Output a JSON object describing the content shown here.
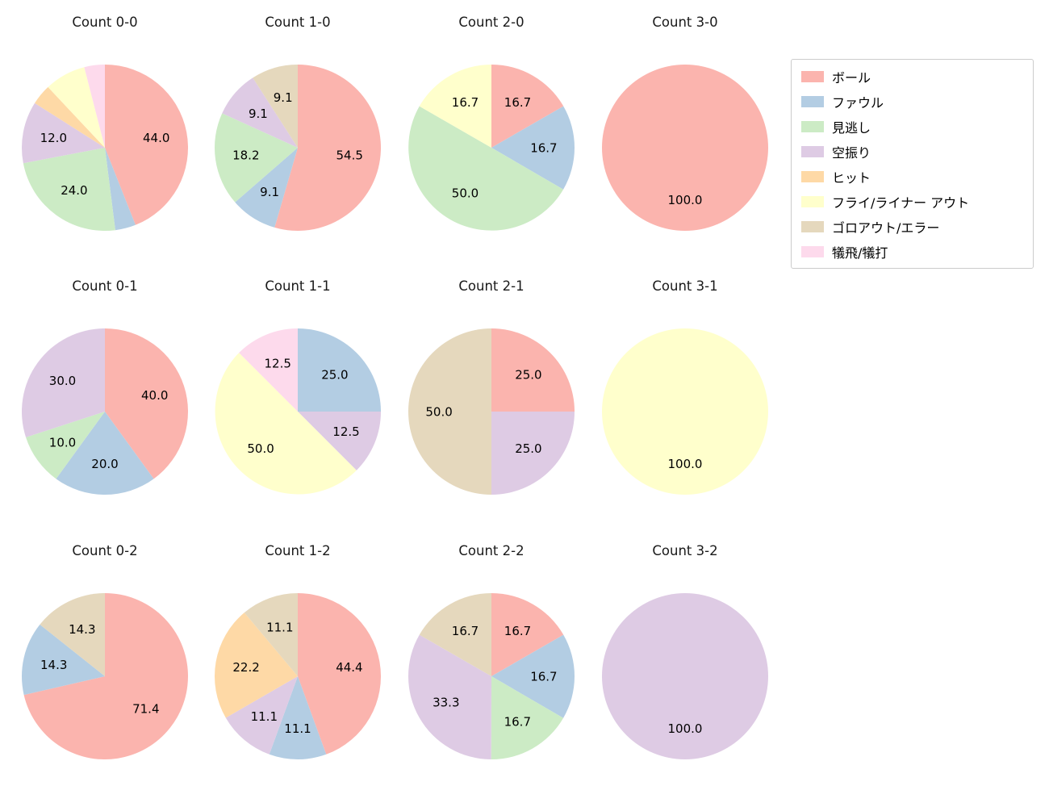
{
  "legend": {
    "items": [
      {
        "label": "ボール",
        "color": "#fbb4ae"
      },
      {
        "label": "ファウル",
        "color": "#b3cde3"
      },
      {
        "label": "見逃し",
        "color": "#ccebc5"
      },
      {
        "label": "空振り",
        "color": "#decbe4"
      },
      {
        "label": "ヒット",
        "color": "#fed9a6"
      },
      {
        "label": "フライ/ライナー アウト",
        "color": "#ffffcc"
      },
      {
        "label": "ゴロアウト/エラー",
        "color": "#e5d8bd"
      },
      {
        "label": "犠飛/犠打",
        "color": "#fddaec"
      }
    ]
  },
  "chart_data": [
    {
      "type": "pie",
      "title": "Count 0-0",
      "start_angle": "top",
      "direction": "clockwise",
      "slices": [
        {
          "category": "ボール",
          "value": 44.0,
          "label": "44.0"
        },
        {
          "category": "ファウル",
          "value": 4.0,
          "label": ""
        },
        {
          "category": "見逃し",
          "value": 24.0,
          "label": "24.0"
        },
        {
          "category": "空振り",
          "value": 12.0,
          "label": "12.0"
        },
        {
          "category": "ヒット",
          "value": 4.0,
          "label": ""
        },
        {
          "category": "フライ/ライナー アウト",
          "value": 8.0,
          "label": ""
        },
        {
          "category": "犠飛/犠打",
          "value": 4.0,
          "label": ""
        }
      ]
    },
    {
      "type": "pie",
      "title": "Count 1-0",
      "start_angle": "top",
      "direction": "clockwise",
      "slices": [
        {
          "category": "ボール",
          "value": 54.5,
          "label": "54.5"
        },
        {
          "category": "ファウル",
          "value": 9.1,
          "label": "9.1"
        },
        {
          "category": "見逃し",
          "value": 18.2,
          "label": "18.2"
        },
        {
          "category": "空振り",
          "value": 9.1,
          "label": "9.1"
        },
        {
          "category": "ゴロアウト/エラー",
          "value": 9.1,
          "label": "9.1"
        }
      ]
    },
    {
      "type": "pie",
      "title": "Count 2-0",
      "start_angle": "top",
      "direction": "clockwise",
      "slices": [
        {
          "category": "ボール",
          "value": 16.7,
          "label": "16.7"
        },
        {
          "category": "ファウル",
          "value": 16.7,
          "label": "16.7"
        },
        {
          "category": "見逃し",
          "value": 50.0,
          "label": "50.0"
        },
        {
          "category": "フライ/ライナー アウト",
          "value": 16.7,
          "label": "16.7"
        }
      ]
    },
    {
      "type": "pie",
      "title": "Count 3-0",
      "start_angle": "top",
      "direction": "clockwise",
      "slices": [
        {
          "category": "ボール",
          "value": 100.0,
          "label": "100.0"
        }
      ]
    },
    {
      "type": "pie",
      "title": "Count 0-1",
      "start_angle": "top",
      "direction": "clockwise",
      "slices": [
        {
          "category": "ボール",
          "value": 40.0,
          "label": "40.0"
        },
        {
          "category": "ファウル",
          "value": 20.0,
          "label": "20.0"
        },
        {
          "category": "見逃し",
          "value": 10.0,
          "label": "10.0"
        },
        {
          "category": "空振り",
          "value": 30.0,
          "label": "30.0"
        }
      ]
    },
    {
      "type": "pie",
      "title": "Count 1-1",
      "start_angle": "top",
      "direction": "clockwise",
      "slices": [
        {
          "category": "ファウル",
          "value": 25.0,
          "label": "25.0"
        },
        {
          "category": "空振り",
          "value": 12.5,
          "label": "12.5"
        },
        {
          "category": "フライ/ライナー アウト",
          "value": 50.0,
          "label": "50.0"
        },
        {
          "category": "犠飛/犠打",
          "value": 12.5,
          "label": "12.5"
        }
      ]
    },
    {
      "type": "pie",
      "title": "Count 2-1",
      "start_angle": "top",
      "direction": "clockwise",
      "slices": [
        {
          "category": "ボール",
          "value": 25.0,
          "label": "25.0"
        },
        {
          "category": "空振り",
          "value": 25.0,
          "label": "25.0"
        },
        {
          "category": "ゴロアウト/エラー",
          "value": 50.0,
          "label": "50.0"
        }
      ]
    },
    {
      "type": "pie",
      "title": "Count 3-1",
      "start_angle": "top",
      "direction": "clockwise",
      "slices": [
        {
          "category": "フライ/ライナー アウト",
          "value": 100.0,
          "label": "100.0"
        }
      ]
    },
    {
      "type": "pie",
      "title": "Count 0-2",
      "start_angle": "top",
      "direction": "clockwise",
      "slices": [
        {
          "category": "ボール",
          "value": 71.4,
          "label": "71.4"
        },
        {
          "category": "ファウル",
          "value": 14.3,
          "label": "14.3"
        },
        {
          "category": "ゴロアウト/エラー",
          "value": 14.3,
          "label": "14.3"
        }
      ]
    },
    {
      "type": "pie",
      "title": "Count 1-2",
      "start_angle": "top",
      "direction": "clockwise",
      "slices": [
        {
          "category": "ボール",
          "value": 44.4,
          "label": "44.4"
        },
        {
          "category": "ファウル",
          "value": 11.1,
          "label": "11.1"
        },
        {
          "category": "空振り",
          "value": 11.1,
          "label": "11.1"
        },
        {
          "category": "ヒット",
          "value": 22.2,
          "label": "22.2"
        },
        {
          "category": "ゴロアウト/エラー",
          "value": 11.1,
          "label": "11.1"
        }
      ]
    },
    {
      "type": "pie",
      "title": "Count 2-2",
      "start_angle": "top",
      "direction": "clockwise",
      "slices": [
        {
          "category": "ボール",
          "value": 16.7,
          "label": "16.7"
        },
        {
          "category": "ファウル",
          "value": 16.7,
          "label": "16.7"
        },
        {
          "category": "見逃し",
          "value": 16.7,
          "label": "16.7"
        },
        {
          "category": "空振り",
          "value": 33.3,
          "label": "33.3"
        },
        {
          "category": "ゴロアウト/エラー",
          "value": 16.7,
          "label": "16.7"
        }
      ]
    },
    {
      "type": "pie",
      "title": "Count 3-2",
      "start_angle": "top",
      "direction": "clockwise",
      "slices": [
        {
          "category": "空振り",
          "value": 100.0,
          "label": "100.0"
        }
      ]
    }
  ]
}
